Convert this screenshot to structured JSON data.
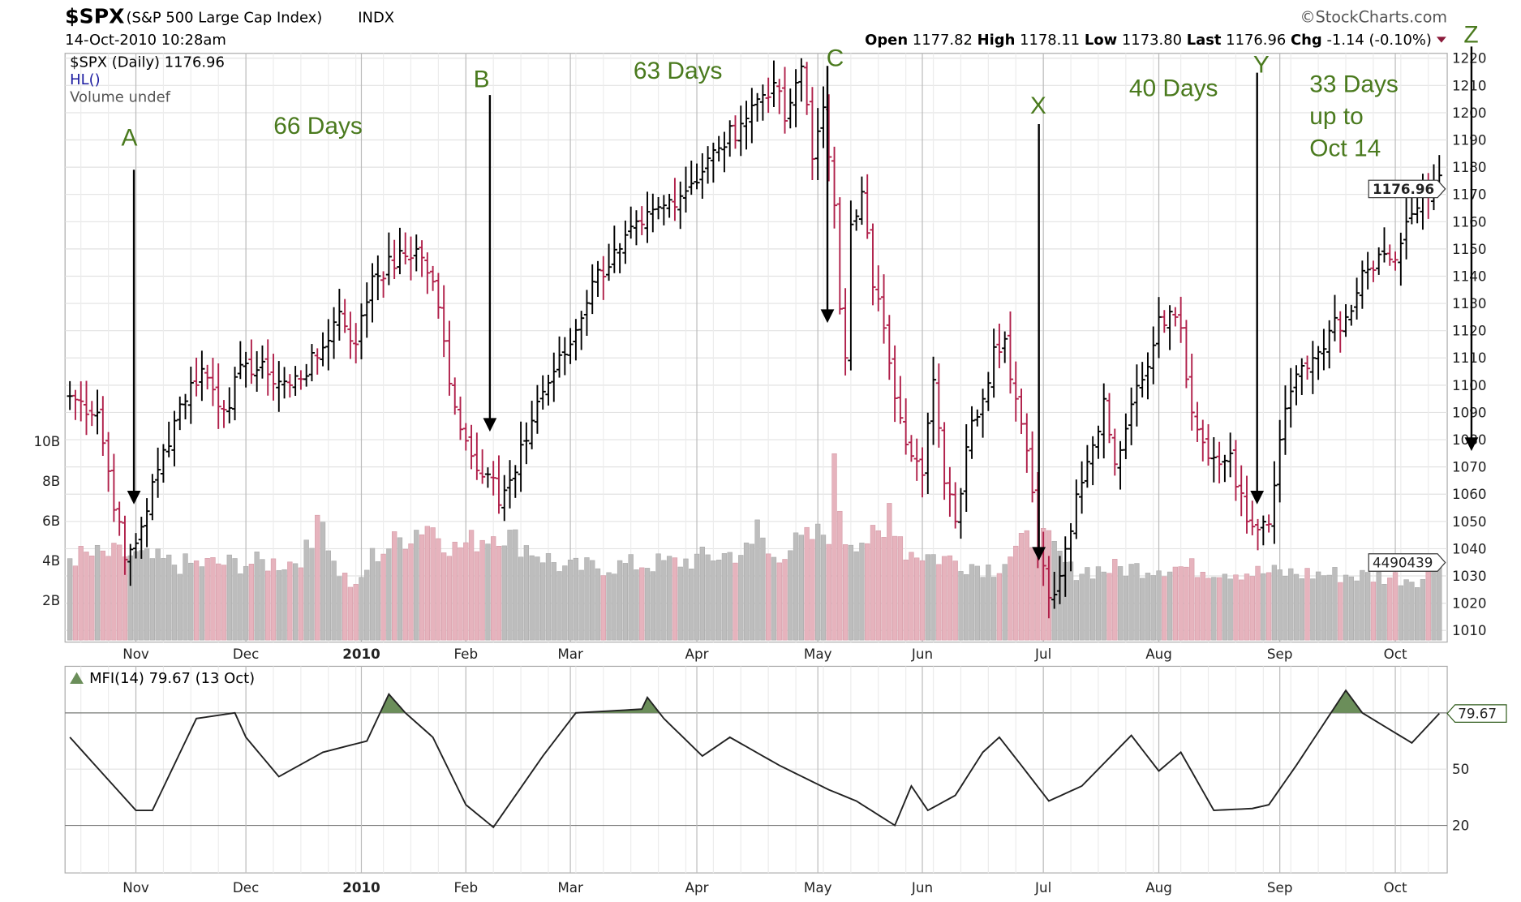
{
  "header": {
    "symbol": "$SPX",
    "name": "(S&P 500 Large Cap Index)",
    "exchange": "INDX",
    "datetime": "14-Oct-2010 10:28am",
    "copyright": "©StockCharts.com",
    "open_label": "Open",
    "open": "1177.82",
    "high_label": "High",
    "high": "1178.11",
    "low_label": "Low",
    "low": "1173.80",
    "last_label": "Last",
    "last": "1176.96",
    "chg_label": "Chg",
    "chg": "-1.14 (-0.10%)"
  },
  "legend": {
    "price": "$SPX (Daily) 1176.96",
    "hl": "HL()",
    "volume": "Volume undef",
    "mfi": "MFI(14) 79.67 (13 Oct)"
  },
  "annotations": {
    "a": "A",
    "b": "B",
    "c": "C",
    "x": "X",
    "y": "Y",
    "z": "Z",
    "d66": "66 Days",
    "d63": "63 Days",
    "d40": "40 Days",
    "d33": "33 Days",
    "d33b": "up to",
    "d33c": "Oct 14"
  },
  "colors": {
    "up": "#000000",
    "down": "#b0204a",
    "vol_up": "#bdbdbd",
    "vol_down": "#e6b3bd",
    "annotation": "#4a7a1e",
    "mfi_fill": "#6b8e5a"
  },
  "chart_data": {
    "type": "ohlc",
    "title": "$SPX (Daily)",
    "price_axis": {
      "min": 1010,
      "max": 1220,
      "step": 10,
      "ticks": [
        "1220",
        "1210",
        "1200",
        "1190",
        "1180",
        "1170",
        "1160",
        "1150",
        "1140",
        "1130",
        "1120",
        "1110",
        "1100",
        "1090",
        "1080",
        "1070",
        "1060",
        "1050",
        "1040",
        "1030",
        "1020",
        "1010"
      ]
    },
    "volume_axis": {
      "ticks": [
        "10B",
        "8B",
        "6B",
        "4B",
        "2B"
      ],
      "values": [
        10,
        8,
        6,
        4,
        2
      ]
    },
    "last_price_label": "1176.96",
    "last_volume_label": "4490439",
    "mfi_last_label": "79.67",
    "months": [
      {
        "label": "Nov",
        "idx": 12
      },
      {
        "label": "Dec",
        "idx": 32
      },
      {
        "label": "2010",
        "idx": 53
      },
      {
        "label": "Feb",
        "idx": 72
      },
      {
        "label": "Mar",
        "idx": 91
      },
      {
        "label": "Apr",
        "idx": 114
      },
      {
        "label": "May",
        "idx": 136
      },
      {
        "label": "Jun",
        "idx": 155
      },
      {
        "label": "Jul",
        "idx": 177
      },
      {
        "label": "Aug",
        "idx": 198
      },
      {
        "label": "Sep",
        "idx": 220
      },
      {
        "label": "Oct",
        "idx": 241
      }
    ],
    "num_days": 250,
    "close_keypoints": [
      [
        0,
        1096
      ],
      [
        5,
        1090
      ],
      [
        10,
        1036
      ],
      [
        12,
        1042
      ],
      [
        16,
        1069
      ],
      [
        20,
        1093
      ],
      [
        24,
        1106
      ],
      [
        28,
        1091
      ],
      [
        32,
        1108
      ],
      [
        36,
        1104
      ],
      [
        40,
        1100
      ],
      [
        45,
        1110
      ],
      [
        49,
        1127
      ],
      [
        52,
        1115
      ],
      [
        55,
        1140
      ],
      [
        63,
        1150
      ],
      [
        66,
        1138
      ],
      [
        70,
        1092
      ],
      [
        73,
        1074
      ],
      [
        77,
        1066
      ],
      [
        78,
        1056
      ],
      [
        81,
        1068
      ],
      [
        85,
        1094
      ],
      [
        88,
        1105
      ],
      [
        91,
        1115
      ],
      [
        95,
        1138
      ],
      [
        100,
        1150
      ],
      [
        104,
        1159
      ],
      [
        108,
        1166
      ],
      [
        113,
        1174
      ],
      [
        118,
        1187
      ],
      [
        122,
        1196
      ],
      [
        125,
        1205
      ],
      [
        128,
        1211
      ],
      [
        130,
        1197
      ],
      [
        132,
        1211
      ],
      [
        133,
        1217
      ],
      [
        135,
        1183
      ],
      [
        137,
        1202
      ],
      [
        139,
        1166
      ],
      [
        140,
        1128
      ],
      [
        141,
        1110
      ],
      [
        142,
        1159
      ],
      [
        144,
        1171
      ],
      [
        146,
        1136
      ],
      [
        148,
        1121
      ],
      [
        151,
        1088
      ],
      [
        153,
        1074
      ],
      [
        155,
        1067
      ],
      [
        157,
        1102
      ],
      [
        159,
        1064
      ],
      [
        161,
        1050
      ],
      [
        164,
        1087
      ],
      [
        166,
        1095
      ],
      [
        168,
        1114
      ],
      [
        170,
        1117
      ],
      [
        172,
        1095
      ],
      [
        174,
        1076
      ],
      [
        176,
        1040
      ],
      [
        178,
        1022
      ],
      [
        180,
        1030
      ],
      [
        183,
        1060
      ],
      [
        186,
        1078
      ],
      [
        188,
        1095
      ],
      [
        190,
        1071
      ],
      [
        193,
        1093
      ],
      [
        195,
        1102
      ],
      [
        198,
        1125
      ],
      [
        200,
        1127
      ],
      [
        202,
        1121
      ],
      [
        204,
        1090
      ],
      [
        206,
        1079
      ],
      [
        209,
        1071
      ],
      [
        211,
        1075
      ],
      [
        214,
        1050
      ],
      [
        216,
        1047
      ],
      [
        218,
        1049
      ],
      [
        220,
        1080
      ],
      [
        223,
        1104
      ],
      [
        226,
        1110
      ],
      [
        229,
        1120
      ],
      [
        232,
        1125
      ],
      [
        235,
        1142
      ],
      [
        238,
        1148
      ],
      [
        241,
        1146
      ],
      [
        243,
        1160
      ],
      [
        245,
        1165
      ],
      [
        247,
        1169
      ],
      [
        249,
        1177
      ]
    ],
    "volume_keypoints_B": [
      [
        0,
        4.2
      ],
      [
        10,
        4.3
      ],
      [
        20,
        3.8
      ],
      [
        40,
        3.9
      ],
      [
        44,
        4.6
      ],
      [
        45,
        7.3
      ],
      [
        48,
        3.8
      ],
      [
        52,
        2.5
      ],
      [
        55,
        4.2
      ],
      [
        65,
        5.9
      ],
      [
        70,
        4.6
      ],
      [
        78,
        5.5
      ],
      [
        90,
        3.6
      ],
      [
        110,
        3.9
      ],
      [
        124,
        4.5
      ],
      [
        124,
        6.9
      ],
      [
        127,
        4.2
      ],
      [
        138,
        5.5
      ],
      [
        139,
        8.4
      ],
      [
        141,
        5.2
      ],
      [
        148,
        5.0
      ],
      [
        149,
        6.8
      ],
      [
        152,
        4.5
      ],
      [
        168,
        3.6
      ],
      [
        176,
        5.4
      ],
      [
        179,
        4.5
      ],
      [
        182,
        3.5
      ],
      [
        200,
        3.7
      ],
      [
        215,
        3.4
      ],
      [
        230,
        3.3
      ],
      [
        246,
        3.1
      ],
      [
        249,
        4.5
      ]
    ],
    "mfi": {
      "levels": [
        20,
        80
      ],
      "ticks": [
        "50",
        "20"
      ],
      "keypoints": [
        [
          0,
          67
        ],
        [
          12,
          28
        ],
        [
          15,
          28
        ],
        [
          23,
          77
        ],
        [
          30,
          80
        ],
        [
          32,
          67
        ],
        [
          38,
          46
        ],
        [
          46,
          59
        ],
        [
          54,
          65
        ],
        [
          58,
          90
        ],
        [
          61,
          80
        ],
        [
          66,
          67
        ],
        [
          72,
          31
        ],
        [
          77,
          19
        ],
        [
          86,
          57
        ],
        [
          92,
          80
        ],
        [
          104,
          82
        ],
        [
          104,
          92
        ],
        [
          108,
          77
        ],
        [
          115,
          57
        ],
        [
          120,
          67
        ],
        [
          129,
          52
        ],
        [
          138,
          39
        ],
        [
          143,
          33
        ],
        [
          150,
          20
        ],
        [
          153,
          41
        ],
        [
          156,
          28
        ],
        [
          161,
          36
        ],
        [
          166,
          59
        ],
        [
          169,
          67
        ],
        [
          173,
          52
        ],
        [
          178,
          33
        ],
        [
          184,
          41
        ],
        [
          193,
          68
        ],
        [
          198,
          49
        ],
        [
          202,
          59
        ],
        [
          208,
          28
        ],
        [
          215,
          29
        ],
        [
          218,
          31
        ],
        [
          223,
          52
        ],
        [
          232,
          92
        ],
        [
          235,
          80
        ],
        [
          244,
          64
        ],
        [
          249,
          79.67
        ]
      ]
    }
  }
}
